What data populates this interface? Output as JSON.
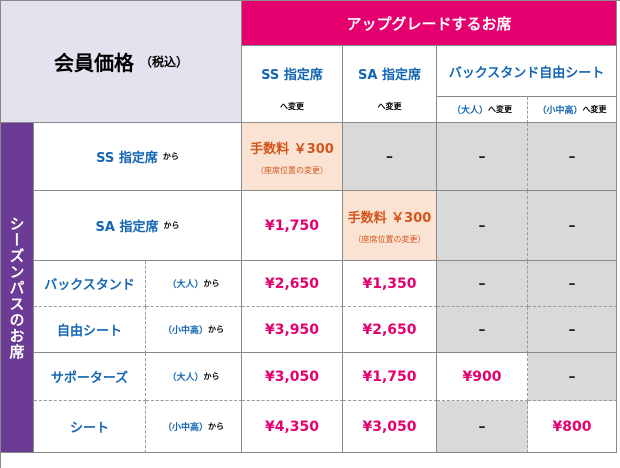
{
  "title": {
    "main": "会員価格",
    "sub": "（税込）"
  },
  "upgrade_header": "アップグレードするお席",
  "col_headers": {
    "ss": "SS 指定席",
    "sa": "SA 指定席",
    "back": "バックスタンド自由シート",
    "to": "へ変更",
    "adult": "（大人）",
    "child": "（小中高）"
  },
  "side_label": "シーズンパスのお席",
  "rows": {
    "ss": "SS 指定席",
    "sa": "SA 指定席",
    "back_a": "バックスタンド",
    "back_b": "自由シート",
    "sup_a": "サポーターズ",
    "sup_b": "シート",
    "adult": "（大人）",
    "child": "（小中高）",
    "from": "から"
  },
  "fee": {
    "label": "手数料 ￥300",
    "note": "（座席位置の変更）"
  },
  "dash": "–",
  "prices": {
    "ss_to_ss": "",
    "sa_to_ss": "¥1,750",
    "back_adult_ss": "¥2,650",
    "back_adult_sa": "¥1,350",
    "back_child_ss": "¥3,950",
    "back_child_sa": "¥2,650",
    "sup_adult_ss": "¥3,050",
    "sup_adult_sa": "¥1,750",
    "sup_adult_back_adult": "¥900",
    "sup_child_ss": "¥4,350",
    "sup_child_sa": "¥3,050",
    "sup_child_back_child": "¥800"
  }
}
